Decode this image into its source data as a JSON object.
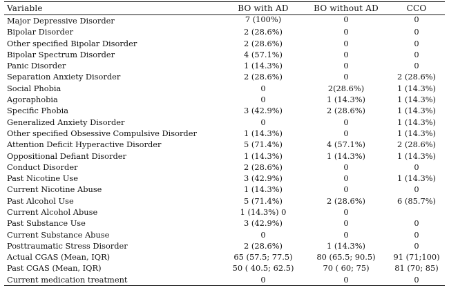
{
  "header": {
    "variable": "Variable",
    "bo_with_ad": "BO with AD",
    "bo_without_ad": "BO without AD",
    "cco": "CCO"
  },
  "rows": [
    {
      "variable": "Major Depressive Disorder",
      "bo_with_ad": "7 (100%)",
      "bo_without_ad": "0",
      "cco": "0"
    },
    {
      "variable": "Bipolar Disorder",
      "bo_with_ad": "2 (28.6%)",
      "bo_without_ad": "0",
      "cco": "0"
    },
    {
      "variable": "Other specified Bipolar Disorder",
      "bo_with_ad": "2 (28.6%)",
      "bo_without_ad": "0",
      "cco": "0"
    },
    {
      "variable": "Bipolar Spectrum Disorder",
      "bo_with_ad": "4 (57.1%)",
      "bo_without_ad": "0",
      "cco": "0"
    },
    {
      "variable": "Panic Disorder",
      "bo_with_ad": "1 (14.3%)",
      "bo_without_ad": "0",
      "cco": "0"
    },
    {
      "variable": "Separation Anxiety Disorder",
      "bo_with_ad": "2 (28.6%)",
      "bo_without_ad": "0",
      "cco": "2 (28.6%)"
    },
    {
      "variable": "Social Phobia",
      "bo_with_ad": "0",
      "bo_without_ad": "2(28.6%)",
      "cco": "1 (14.3%)"
    },
    {
      "variable": "Agoraphobia",
      "bo_with_ad": "0",
      "bo_without_ad": "1 (14.3%)",
      "cco": "1 (14.3%)"
    },
    {
      "variable": "Specific Phobia",
      "bo_with_ad": "3 (42.9%)",
      "bo_without_ad": "2 (28.6%)",
      "cco": "1 (14.3%)"
    },
    {
      "variable": "Generalized Anxiety Disorder",
      "bo_with_ad": "0",
      "bo_without_ad": "0",
      "cco": "1 (14.3%)"
    },
    {
      "variable": "Other specified Obsessive Compulsive Disorder",
      "bo_with_ad": "1 (14.3%)",
      "bo_without_ad": "0",
      "cco": "1 (14.3%)"
    },
    {
      "variable": "Attention Deficit Hyperactive Disorder",
      "bo_with_ad": "5 (71.4%)",
      "bo_without_ad": "4 (57.1%)",
      "cco": "2 (28.6%)"
    },
    {
      "variable": "Oppositional Defiant Disorder",
      "bo_with_ad": "1 (14.3%)",
      "bo_without_ad": "1 (14.3%)",
      "cco": "1 (14.3%)"
    },
    {
      "variable": "Conduct Disorder",
      "bo_with_ad": "2 (28.6%)",
      "bo_without_ad": "0",
      "cco": "0"
    },
    {
      "variable": "Past Nicotine Use",
      "bo_with_ad": "3 (42.9%)",
      "bo_without_ad": "0",
      "cco": "1 (14.3%)"
    },
    {
      "variable": "Current Nicotine Abuse",
      "bo_with_ad": "1 (14.3%)",
      "bo_without_ad": "0",
      "cco": "0"
    },
    {
      "variable": "Past Alcohol Use",
      "bo_with_ad": "5 (71.4%)",
      "bo_without_ad": "2 (28.6%)",
      "cco": "6 (85.7%)"
    },
    {
      "variable": "Current Alcohol Abuse",
      "bo_with_ad": "1 (14.3%) 0",
      "bo_without_ad": "0",
      "cco": ""
    },
    {
      "variable": "Past Substance Use",
      "bo_with_ad": "3 (42.9%)",
      "bo_without_ad": "0",
      "cco": "0"
    },
    {
      "variable": "Current Substance Abuse",
      "bo_with_ad": "0",
      "bo_without_ad": "0",
      "cco": "0"
    },
    {
      "variable": "Posttraumatic Stress Disorder",
      "bo_with_ad": "2 (28.6%)",
      "bo_without_ad": "1 (14.3%)",
      "cco": "0"
    },
    {
      "variable": "Actual CGAS (Mean, IQR)",
      "bo_with_ad": "65 (57.5; 77.5)",
      "bo_without_ad": "80 (65.5; 90.5)",
      "cco": "91 (71;100)"
    },
    {
      "variable": "Past CGAS (Mean, IQR)",
      "bo_with_ad": "50 ( 40.5; 62.5)",
      "bo_without_ad": "70 ( 60; 75)",
      "cco": "81 (70; 85)"
    },
    {
      "variable": "Current medication treatment",
      "bo_with_ad": "0",
      "bo_without_ad": "0",
      "cco": "0"
    }
  ]
}
